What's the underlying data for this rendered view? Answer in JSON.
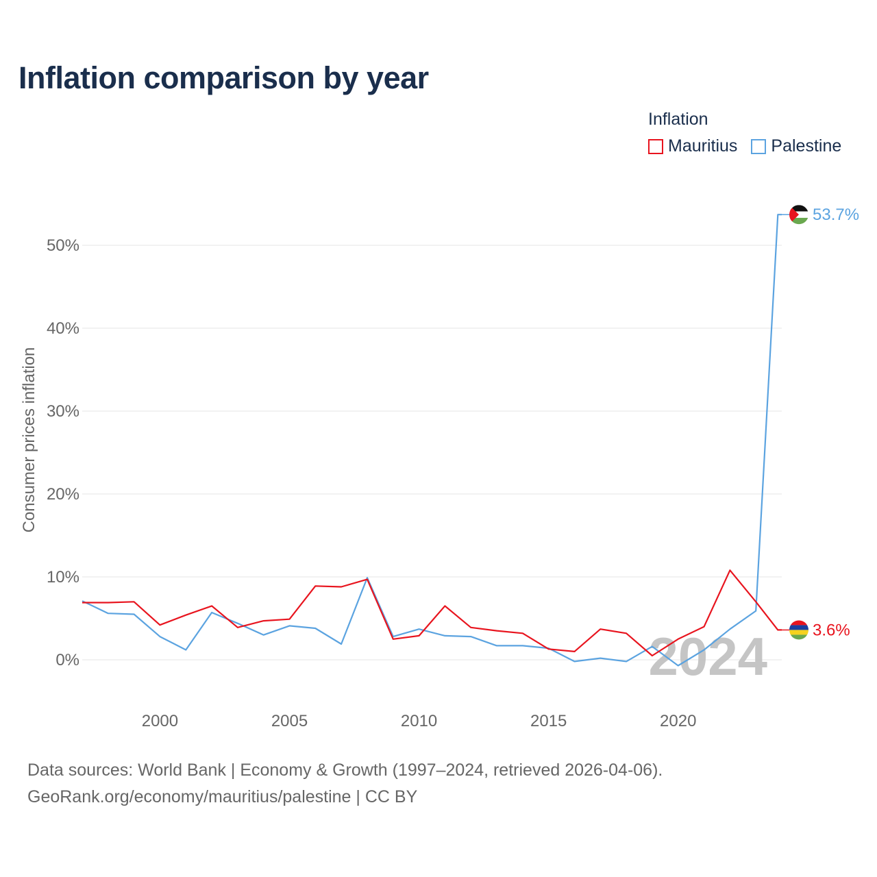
{
  "title": "Inflation comparison by year",
  "legend": {
    "title": "Inflation",
    "items": [
      {
        "name": "Mauritius",
        "color": "#e8141e"
      },
      {
        "name": "Palestine",
        "color": "#5ba3e0"
      }
    ]
  },
  "chart_data": {
    "type": "line",
    "title": "Inflation comparison by year",
    "xlabel": "",
    "ylabel": "Consumer prices inflation",
    "x": [
      1997,
      1998,
      1999,
      2000,
      2001,
      2002,
      2003,
      2004,
      2005,
      2006,
      2007,
      2008,
      2009,
      2010,
      2011,
      2012,
      2013,
      2014,
      2015,
      2016,
      2017,
      2018,
      2019,
      2020,
      2021,
      2022,
      2023,
      2024
    ],
    "xlim": [
      1997,
      2024
    ],
    "ylim": [
      -5,
      55
    ],
    "x_ticks": [
      2000,
      2005,
      2010,
      2015,
      2020
    ],
    "x_tick_labels": [
      "2000",
      "2005",
      "2010",
      "2015",
      "2020"
    ],
    "y_ticks": [
      0,
      10,
      20,
      30,
      40,
      50
    ],
    "y_tick_labels": [
      "0%",
      "10%",
      "20%",
      "30%",
      "40%",
      "50%"
    ],
    "grid": true,
    "series": [
      {
        "name": "Mauritius",
        "color": "#e8141e",
        "values": [
          6.9,
          6.9,
          7.0,
          4.2,
          5.4,
          6.5,
          3.9,
          4.7,
          4.9,
          8.9,
          8.8,
          9.7,
          2.5,
          2.9,
          6.5,
          3.9,
          3.5,
          3.2,
          1.3,
          1.0,
          3.7,
          3.2,
          0.5,
          2.5,
          4.0,
          10.8,
          7.0,
          3.6
        ],
        "end_label": "3.6%",
        "flag": "mauritius"
      },
      {
        "name": "Palestine",
        "color": "#5ba3e0",
        "values": [
          7.1,
          5.6,
          5.5,
          2.8,
          1.2,
          5.7,
          4.4,
          3.0,
          4.1,
          3.8,
          1.9,
          9.9,
          2.8,
          3.7,
          2.9,
          2.8,
          1.7,
          1.7,
          1.4,
          -0.2,
          0.2,
          -0.2,
          1.6,
          -0.7,
          1.2,
          3.7,
          5.9,
          53.7
        ],
        "end_label": "53.7%",
        "flag": "palestine"
      }
    ],
    "annotation": "2024"
  },
  "footer": {
    "line1": "Data sources: World Bank | Economy & Growth (1997–2024, retrieved 2026-04-06).",
    "line2": "GeoRank.org/economy/mauritius/palestine | CC BY"
  }
}
